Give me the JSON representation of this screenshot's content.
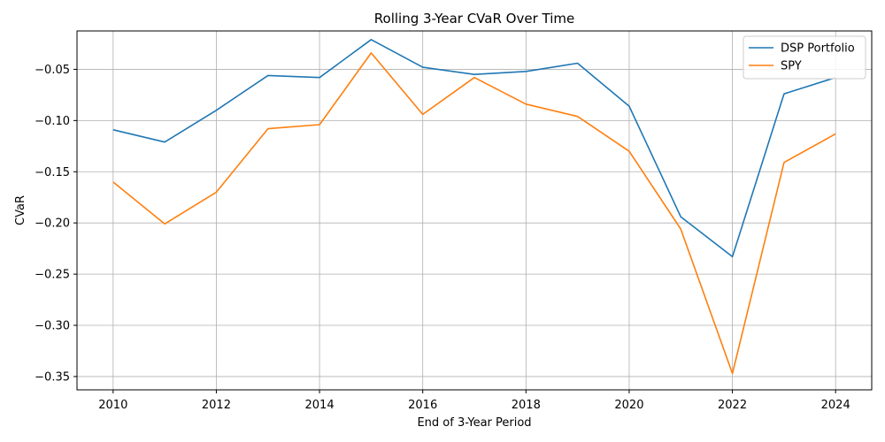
{
  "chart_data": {
    "type": "line",
    "title": "Rolling 3-Year CVaR Over Time",
    "xlabel": "End of 3-Year Period",
    "ylabel": "CVaR",
    "x": [
      2010,
      2011,
      2012,
      2013,
      2014,
      2015,
      2016,
      2017,
      2018,
      2019,
      2020,
      2021,
      2022,
      2023,
      2024
    ],
    "series": [
      {
        "name": "DSP Portfolio",
        "color": "#1f77b4",
        "values": [
          -0.109,
          -0.121,
          -0.09,
          -0.056,
          -0.058,
          -0.021,
          -0.048,
          -0.055,
          -0.052,
          -0.044,
          -0.086,
          -0.194,
          -0.233,
          -0.074,
          -0.058
        ]
      },
      {
        "name": "SPY",
        "color": "#ff7f0e",
        "values": [
          -0.16,
          -0.201,
          -0.17,
          -0.108,
          -0.104,
          -0.034,
          -0.094,
          -0.058,
          -0.084,
          -0.096,
          -0.13,
          -0.206,
          -0.347,
          -0.141,
          -0.113
        ]
      }
    ],
    "xticks": [
      2010,
      2012,
      2014,
      2016,
      2018,
      2020,
      2022,
      2024
    ],
    "xtick_labels": [
      "2010",
      "2012",
      "2014",
      "2016",
      "2018",
      "2020",
      "2022",
      "2024"
    ],
    "yticks": [
      -0.35,
      -0.3,
      -0.25,
      -0.2,
      -0.15,
      -0.1,
      -0.05
    ],
    "ytick_labels": [
      "−0.35",
      "−0.30",
      "−0.25",
      "−0.20",
      "−0.15",
      "−0.10",
      "−0.05"
    ],
    "xlim": [
      2009.3,
      2024.7
    ],
    "ylim": [
      -0.363,
      -0.0125
    ],
    "grid": true,
    "legend_position": "top-right"
  }
}
